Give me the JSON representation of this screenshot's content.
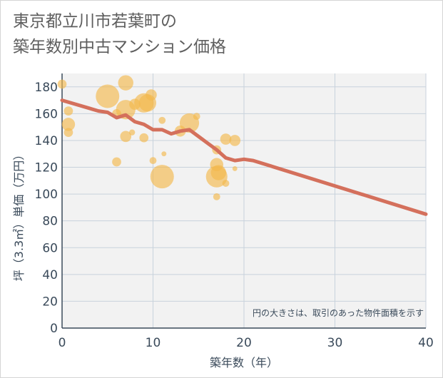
{
  "title": {
    "line1": "東京都立川市若葉町の",
    "line2": "築年数別中古マンション価格"
  },
  "colors": {
    "bubble_fill": "#f2b84d",
    "bubble_opacity": 0.65,
    "trend_line": "#d4705c",
    "grid": "#c8d2dc",
    "plot_bg": "#f2f2f2"
  },
  "chart_data": {
    "type": "scatter",
    "title": "東京都立川市若葉町の築年数別中古マンション価格",
    "xlabel": "築年数（年）",
    "ylabel": "坪（3.3㎡）単価（万円）",
    "xlim": [
      0,
      40
    ],
    "ylim": [
      0,
      190
    ],
    "xticks": [
      0,
      10,
      20,
      30,
      40
    ],
    "yticks": [
      0,
      20,
      40,
      60,
      80,
      100,
      120,
      140,
      160,
      180
    ],
    "note": "円の大きさは、取引のあった物件面積を示す",
    "bubbles": [
      {
        "x": 0,
        "y": 182,
        "size": 3
      },
      {
        "x": 0.7,
        "y": 162,
        "size": 3
      },
      {
        "x": 0.7,
        "y": 152,
        "size": 5
      },
      {
        "x": 0.7,
        "y": 146,
        "size": 3
      },
      {
        "x": 5,
        "y": 173,
        "size": 10
      },
      {
        "x": 6,
        "y": 160,
        "size": 3
      },
      {
        "x": 6,
        "y": 124,
        "size": 3
      },
      {
        "x": 7,
        "y": 183,
        "size": 6
      },
      {
        "x": 7,
        "y": 163,
        "size": 8
      },
      {
        "x": 7,
        "y": 143,
        "size": 4
      },
      {
        "x": 7.7,
        "y": 146,
        "size": 1.5
      },
      {
        "x": 8,
        "y": 167,
        "size": 4
      },
      {
        "x": 9,
        "y": 168,
        "size": 8
      },
      {
        "x": 9,
        "y": 142,
        "size": 3
      },
      {
        "x": 9.4,
        "y": 168,
        "size": 7
      },
      {
        "x": 9.8,
        "y": 174,
        "size": 4
      },
      {
        "x": 10,
        "y": 125,
        "size": 2
      },
      {
        "x": 11,
        "y": 113,
        "size": 10
      },
      {
        "x": 11,
        "y": 155,
        "size": 2
      },
      {
        "x": 11.2,
        "y": 130,
        "size": 1
      },
      {
        "x": 13,
        "y": 147,
        "size": 4
      },
      {
        "x": 14,
        "y": 153,
        "size": 8
      },
      {
        "x": 14.8,
        "y": 158,
        "size": 2
      },
      {
        "x": 17,
        "y": 113,
        "size": 9
      },
      {
        "x": 17,
        "y": 122,
        "size": 5
      },
      {
        "x": 17,
        "y": 133,
        "size": 3
      },
      {
        "x": 17,
        "y": 98,
        "size": 2
      },
      {
        "x": 17.2,
        "y": 116,
        "size": 6
      },
      {
        "x": 18,
        "y": 141,
        "size": 4
      },
      {
        "x": 18,
        "y": 108,
        "size": 2
      },
      {
        "x": 19,
        "y": 140,
        "size": 4
      },
      {
        "x": 19,
        "y": 119,
        "size": 1
      }
    ],
    "trend": {
      "x": [
        0,
        4,
        5,
        6,
        7,
        8,
        9,
        10,
        11,
        12,
        13,
        14,
        15,
        16,
        17,
        18,
        19,
        20,
        21,
        40
      ],
      "y": [
        170,
        162,
        161,
        157,
        159,
        154,
        152,
        148,
        148,
        145,
        147,
        148,
        143,
        138,
        133,
        127,
        125,
        126,
        125,
        85
      ]
    }
  }
}
